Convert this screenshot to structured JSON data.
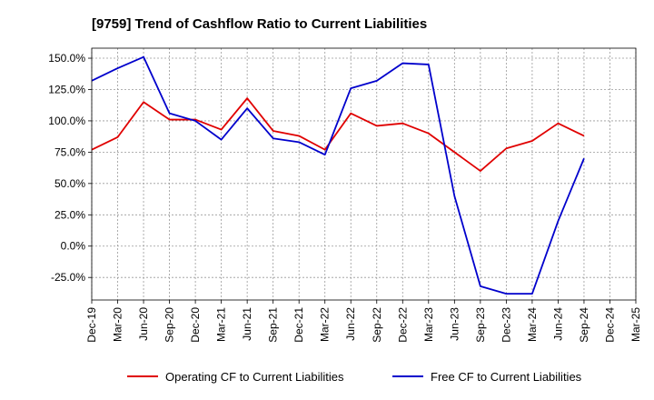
{
  "chart_data": {
    "type": "line",
    "title": "[9759]  Trend of Cashflow Ratio to Current Liabilities",
    "xlabel": "",
    "ylabel": "",
    "categories": [
      "Dec-19",
      "Mar-20",
      "Jun-20",
      "Sep-20",
      "Dec-20",
      "Mar-21",
      "Jun-21",
      "Sep-21",
      "Dec-21",
      "Mar-22",
      "Jun-22",
      "Sep-22",
      "Dec-22",
      "Mar-23",
      "Jun-23",
      "Sep-23",
      "Dec-23",
      "Mar-24",
      "Jun-24",
      "Sep-24",
      "Dec-24",
      "Mar-25"
    ],
    "ylim": [
      -43,
      158
    ],
    "yticks": [
      150,
      125,
      100,
      75,
      50,
      25,
      0,
      -25
    ],
    "ytick_labels": [
      "150.0%",
      "125.0%",
      "100.0%",
      "75.0%",
      "50.0%",
      "25.0%",
      "0.0%",
      "-25.0%"
    ],
    "grid": true,
    "legend_position": "bottom",
    "series": [
      {
        "name": "Operating CF to Current Liabilities",
        "color": "#e00000",
        "values": [
          77,
          87,
          115,
          101,
          101,
          93,
          118,
          92,
          88,
          77,
          106,
          96,
          98,
          90,
          75,
          60,
          78,
          84,
          98,
          88,
          null,
          null
        ]
      },
      {
        "name": "Free CF to Current Liabilities",
        "color": "#0000cc",
        "values": [
          132,
          142,
          151,
          106,
          100,
          85,
          110,
          86,
          83,
          73,
          126,
          132,
          146,
          145,
          40,
          -32,
          -38,
          -38,
          20,
          70,
          null,
          null
        ]
      }
    ]
  }
}
